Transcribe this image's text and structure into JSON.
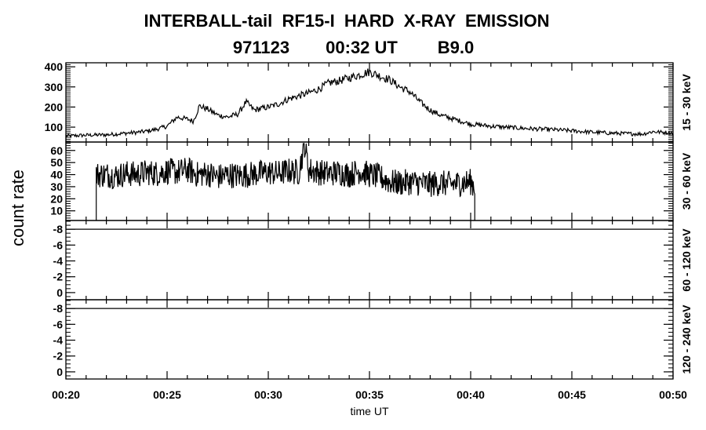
{
  "chart_data": {
    "type": "line",
    "title": "INTERBALL-tail  RF15-I  HARD  X-RAY  EMISSION",
    "subtitle": [
      "971123",
      "00:32 UT",
      "B9.0"
    ],
    "xlabel": "time UT",
    "ylabel": "count rate",
    "x_unit": "minutes after 00:20",
    "xlim": [
      0,
      30
    ],
    "x_ticks": [
      0,
      5,
      10,
      15,
      20,
      25,
      30
    ],
    "x_tick_labels": [
      "00:20",
      "00:25",
      "00:30",
      "00:35",
      "00:40",
      "00:45",
      "00:50"
    ],
    "panels": [
      {
        "label": "15 - 30 keV",
        "ylim": [
          26,
          420
        ],
        "y_ticks": [
          100,
          200,
          300,
          400
        ],
        "y_tick_labels": [
          "100",
          "200",
          "300",
          "400"
        ],
        "x": [
          0,
          0.5,
          1,
          1.5,
          2,
          2.5,
          3,
          3.5,
          4,
          4.5,
          5,
          5.5,
          6,
          6.3,
          6.6,
          7,
          7.5,
          8,
          8.5,
          8.9,
          9.3,
          10,
          10.5,
          11,
          11.5,
          12,
          12.5,
          13,
          13.5,
          14,
          14.5,
          15,
          15.5,
          16,
          16.5,
          17,
          17.5,
          18,
          18.5,
          19,
          19.5,
          20,
          21,
          22,
          23,
          24,
          25,
          26,
          27,
          28,
          28.5,
          29,
          29.5,
          30
        ],
        "values": [
          55,
          58,
          60,
          61,
          62,
          66,
          70,
          74,
          80,
          90,
          105,
          150,
          140,
          130,
          205,
          190,
          160,
          150,
          165,
          225,
          185,
          200,
          215,
          240,
          255,
          270,
          290,
          320,
          330,
          345,
          360,
          375,
          355,
          335,
          300,
          275,
          225,
          185,
          160,
          145,
          130,
          115,
          105,
          98,
          92,
          88,
          82,
          75,
          70,
          67,
          66,
          78,
          74,
          72
        ]
      },
      {
        "label": "30 - 60 keV",
        "ylim": [
          2,
          67
        ],
        "y_ticks": [
          10,
          20,
          30,
          40,
          50,
          60
        ],
        "y_tick_labels": [
          "10",
          "20",
          "30",
          "40",
          "50",
          "60"
        ],
        "data_start": 1.5,
        "data_end": 20.2,
        "x": [
          1.5,
          2,
          2.5,
          3,
          3.5,
          4,
          4.5,
          5,
          5.5,
          6,
          6.5,
          7,
          7.5,
          8,
          8.5,
          9,
          9.5,
          10,
          10.5,
          11,
          11.5,
          11.8,
          12,
          12.5,
          13,
          13.5,
          14,
          14.5,
          15,
          15.5,
          16,
          16.5,
          17,
          17.5,
          18,
          18.5,
          19,
          19.5,
          20,
          20.2
        ],
        "values": [
          40,
          40,
          39,
          41,
          40,
          42,
          41,
          43,
          42,
          44,
          40,
          41,
          38,
          40,
          39,
          40,
          41,
          42,
          41,
          43,
          42,
          65,
          44,
          42,
          41,
          42,
          40,
          43,
          40,
          38,
          34,
          33,
          34,
          33,
          32,
          33,
          32,
          33,
          34,
          30
        ]
      },
      {
        "label": "60 - 120 keV",
        "ylim": [
          0.9,
          -9.1
        ],
        "y_ticks": [
          -8,
          -6,
          -4,
          -2,
          0
        ],
        "y_tick_labels": [
          "-8",
          "-6",
          "-4",
          "-2",
          "0"
        ],
        "x": [
          0,
          30
        ],
        "values": [
          -8,
          -8
        ]
      },
      {
        "label": "120 - 240 keV",
        "ylim": [
          0.9,
          -9.1
        ],
        "y_ticks": [
          -8,
          -6,
          -4,
          -2,
          0
        ],
        "y_tick_labels": [
          "-8",
          "-6",
          "-4",
          "-2",
          "0"
        ],
        "x": [
          0,
          30
        ],
        "values": [
          -8,
          -8
        ]
      }
    ]
  }
}
